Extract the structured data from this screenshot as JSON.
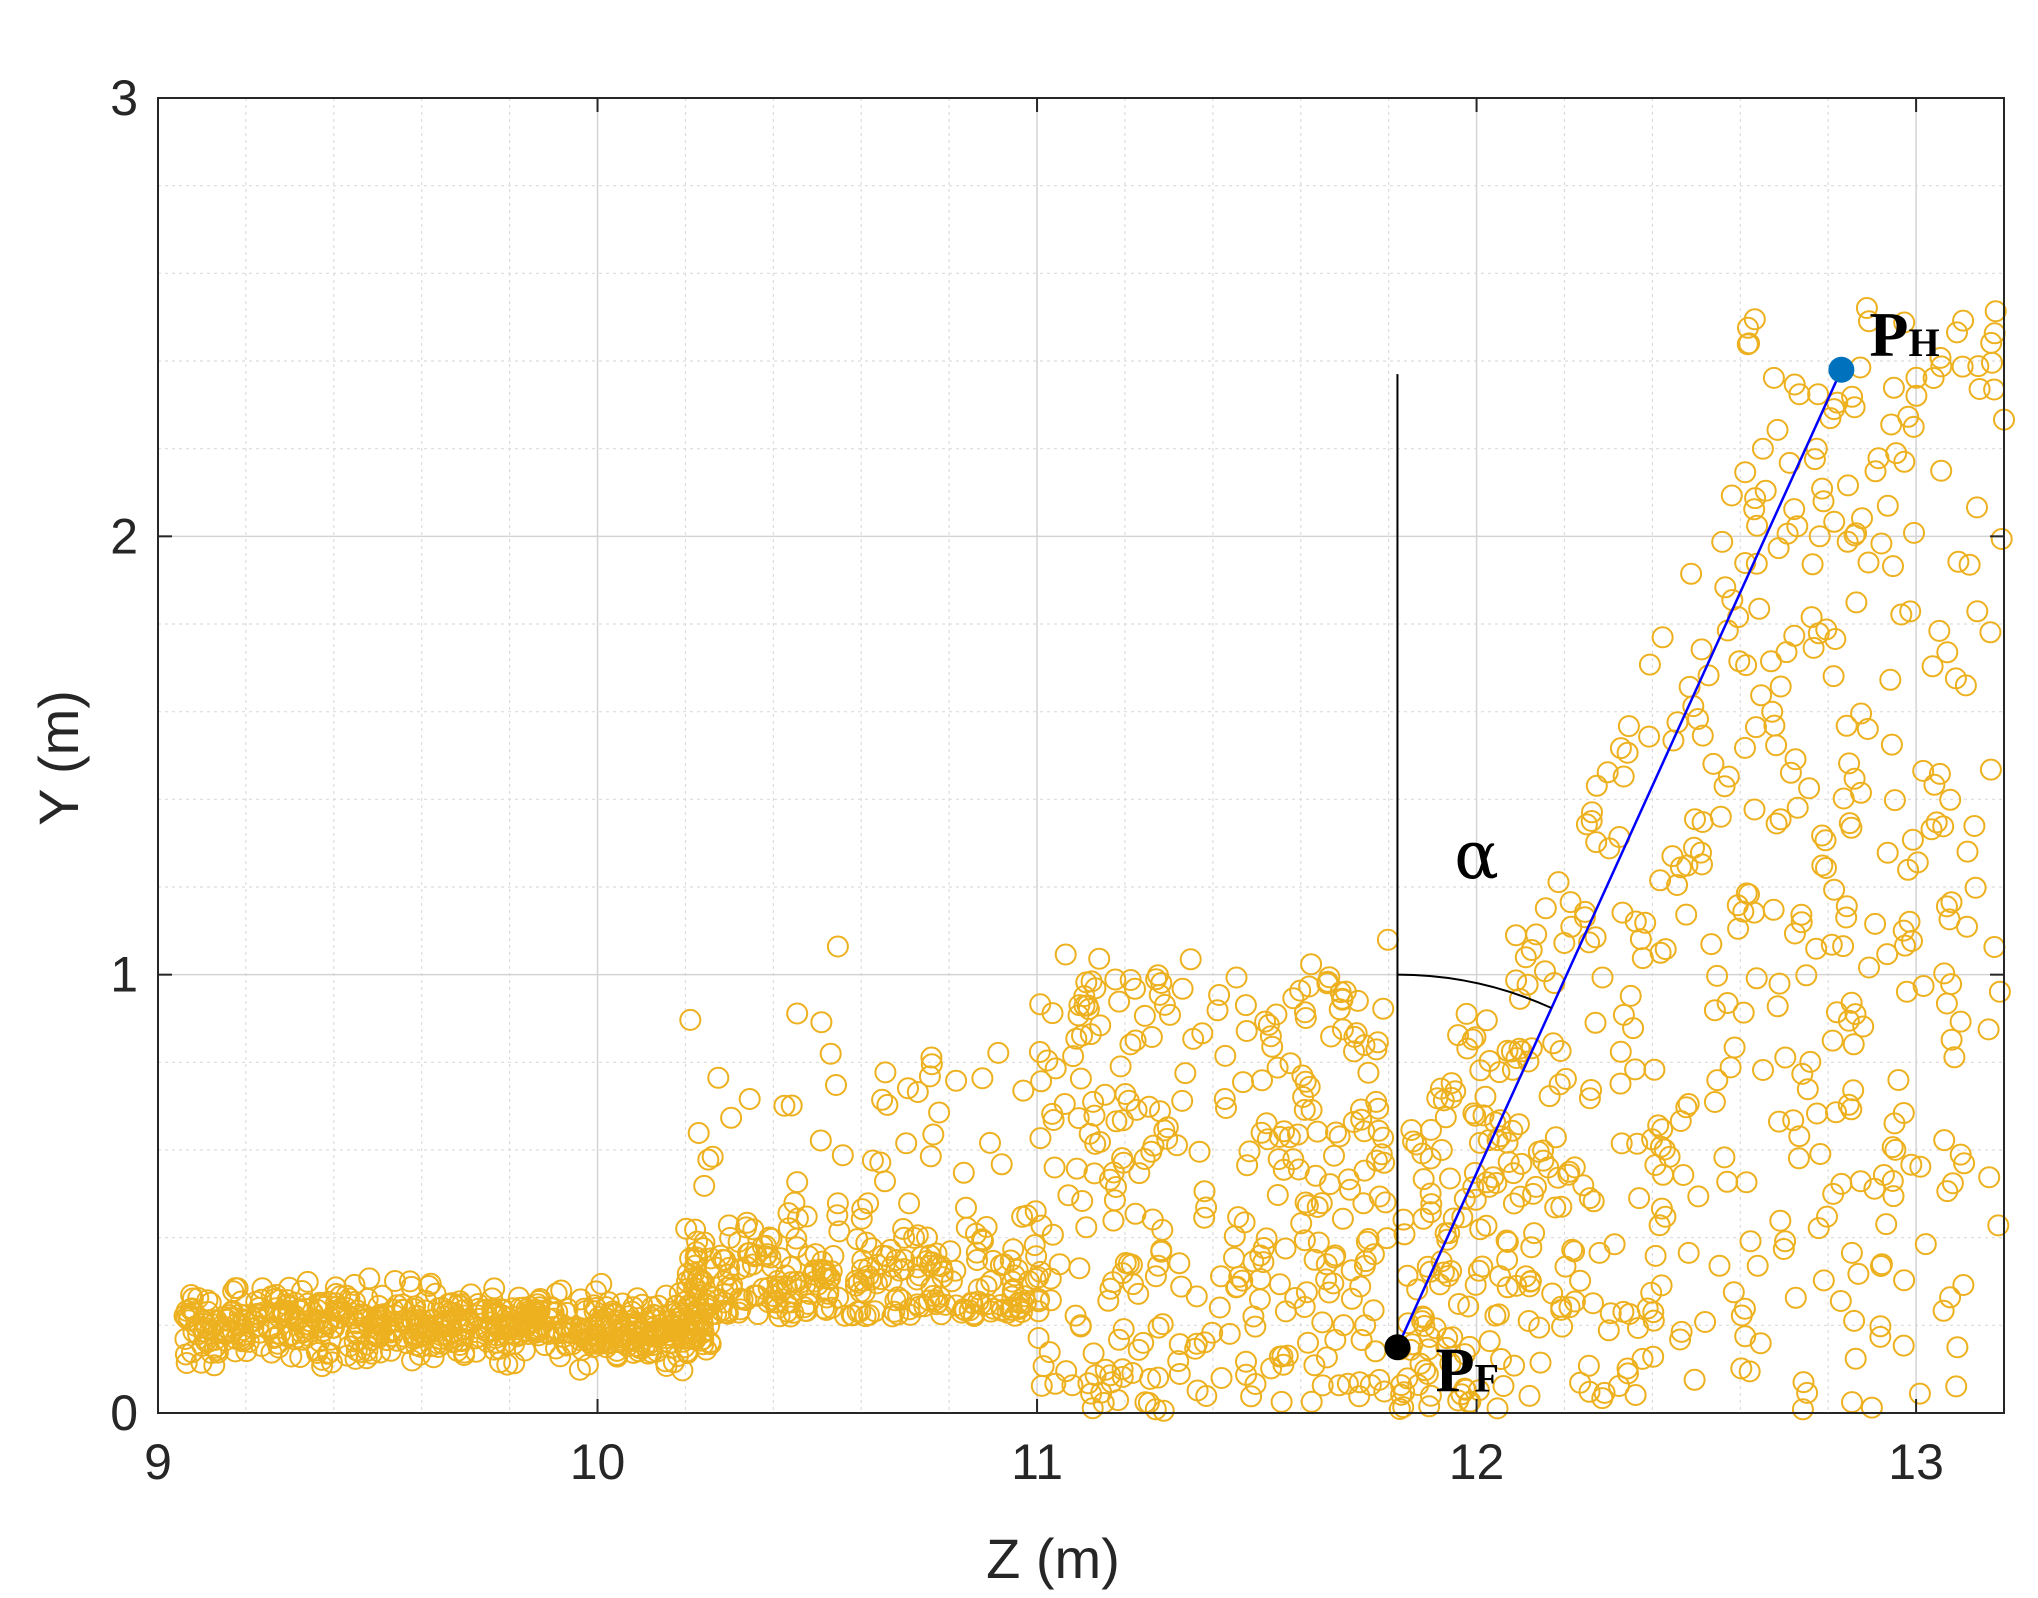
{
  "chart_data": {
    "type": "scatter",
    "xlabel": "Z (m)",
    "ylabel": "Y (m)",
    "xlim": [
      9,
      13.2
    ],
    "ylim": [
      0,
      3
    ],
    "xticks": [
      9,
      10,
      11,
      12,
      13
    ],
    "yticks": [
      0,
      1,
      2,
      3
    ],
    "grid": true,
    "minor_grid": true,
    "colors": {
      "points": "#EDB120",
      "P_H": "#0072BD",
      "P_F": "#000000",
      "line": "#0000FF",
      "vertical": "#000000"
    },
    "points_approx_count": 1800,
    "point_clusters": [
      {
        "z_range": [
          9.05,
          10.2
        ],
        "y_range": [
          0.0,
          0.5
        ],
        "density": "very high"
      },
      {
        "z_range": [
          10.2,
          11.0
        ],
        "y_range": [
          0.0,
          0.75
        ],
        "density": "high"
      },
      {
        "z_range": [
          11.0,
          11.8
        ],
        "y_range": [
          0.0,
          1.15
        ],
        "density": "medium"
      },
      {
        "z_range": [
          11.8,
          12.6
        ],
        "y_range": [
          0.0,
          2.05
        ],
        "density": "medium"
      },
      {
        "z_range": [
          12.6,
          13.2
        ],
        "y_range": [
          0.0,
          2.6
        ],
        "density": "medium"
      }
    ],
    "annotations": [
      {
        "name": "P_F",
        "main": "P",
        "sub": "F",
        "z": 11.82,
        "y": 0.15
      },
      {
        "name": "P_H",
        "main": "P",
        "sub": "H",
        "z": 12.83,
        "y": 2.38
      },
      {
        "name": "alpha",
        "text": "α",
        "z": 12.0,
        "y": 1.22
      }
    ],
    "vertical_line": {
      "z": 11.82,
      "y0": 0.15,
      "y1": 2.37
    },
    "angle_arc": {
      "z_center": 11.82,
      "y_start": 1.0,
      "label": "α"
    }
  }
}
